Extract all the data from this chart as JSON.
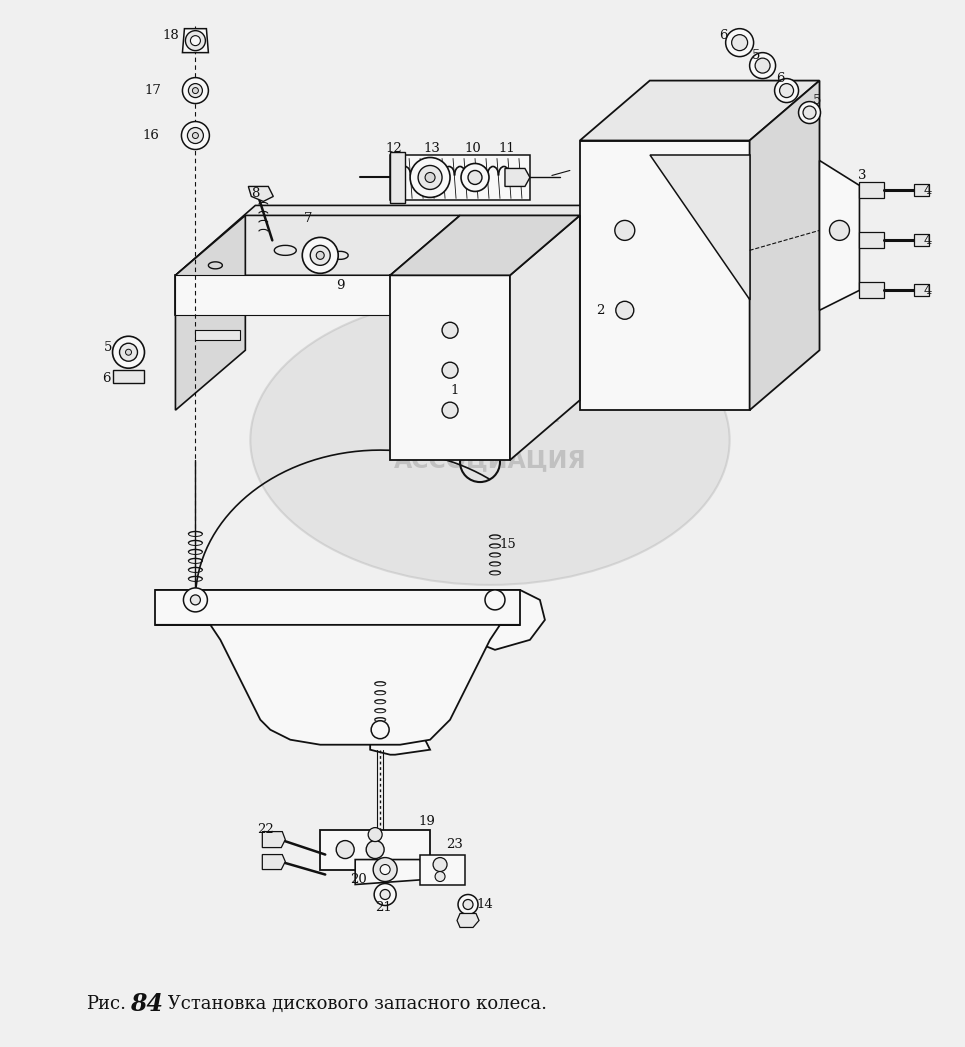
{
  "caption_ric": "Рис.",
  "caption_num": "84",
  "caption_rest": " Установка дискового запасного колеса.",
  "bg_color": "#f0f0f0",
  "line_color": "#111111",
  "fill_light": "#f8f8f8",
  "fill_mid": "#e8e8e8",
  "fill_dark": "#d8d8d8",
  "fig_width": 9.65,
  "fig_height": 10.47,
  "dpi": 100
}
